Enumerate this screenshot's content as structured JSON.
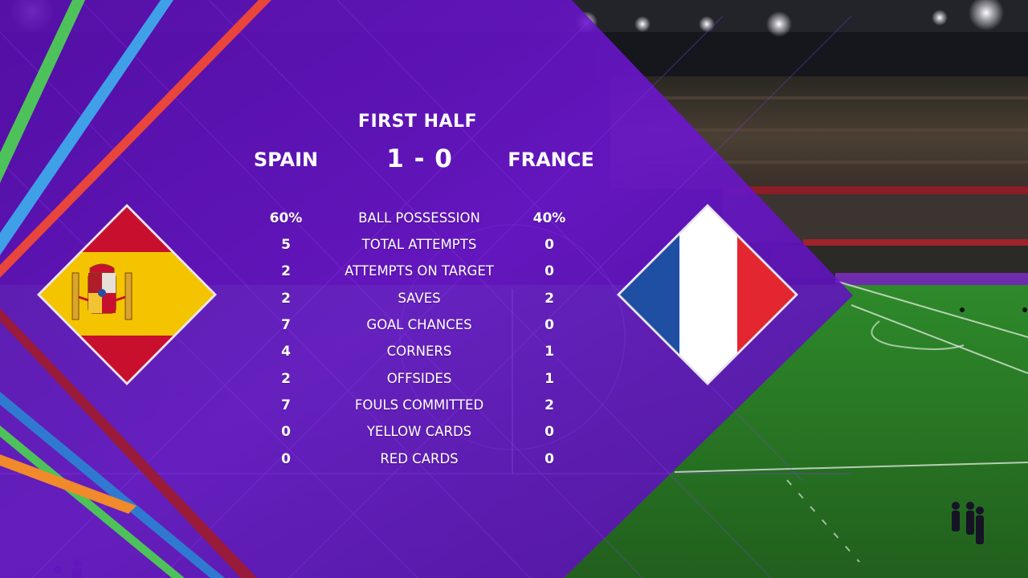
{
  "scoreboard": {
    "period": "FIRST HALF",
    "home_team": "SPAIN",
    "away_team": "FRANCE",
    "home_score": "1",
    "separator": "-",
    "away_score": "0"
  },
  "stats": [
    {
      "home": "60%",
      "label": "BALL POSSESSION",
      "away": "40%"
    },
    {
      "home": "5",
      "label": "TOTAL ATTEMPTS",
      "away": "0"
    },
    {
      "home": "2",
      "label": "ATTEMPTS ON TARGET",
      "away": "0"
    },
    {
      "home": "2",
      "label": "SAVES",
      "away": "2"
    },
    {
      "home": "7",
      "label": "GOAL CHANCES",
      "away": "0"
    },
    {
      "home": "4",
      "label": "CORNERS",
      "away": "1"
    },
    {
      "home": "2",
      "label": "OFFSIDES",
      "away": "1"
    },
    {
      "home": "7",
      "label": "FOULS COMMITTED",
      "away": "2"
    },
    {
      "home": "0",
      "label": "YELLOW CARDS",
      "away": "0"
    },
    {
      "home": "0",
      "label": "RED CARDS",
      "away": "0"
    }
  ],
  "flags": {
    "home": {
      "icon": "spain-flag-icon",
      "colors": [
        "#c8102e",
        "#f5c400",
        "#c8102e"
      ]
    },
    "away": {
      "icon": "france-flag-icon",
      "colors": [
        "#1e4fa3",
        "#ffffff",
        "#e3262f"
      ]
    }
  },
  "colors": {
    "panel": "#6a14c9",
    "pitch": "#2f7a28",
    "accent_ribbons": [
      "#4ec25a",
      "#3fa0e8",
      "#e8453c",
      "#f08a2a",
      "#9a1a3a"
    ]
  }
}
